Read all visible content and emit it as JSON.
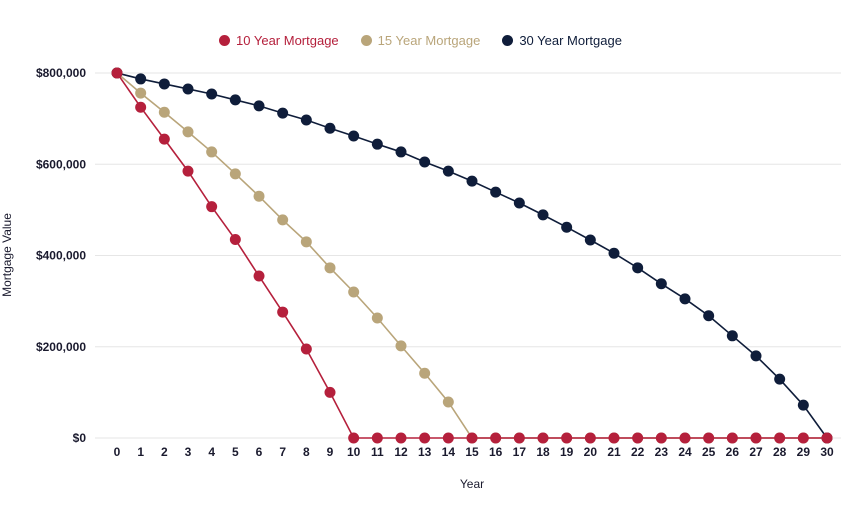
{
  "chart_data": {
    "type": "line",
    "xlabel": "Year",
    "ylabel": "Mortgage Value",
    "x": [
      0,
      1,
      2,
      3,
      4,
      5,
      6,
      7,
      8,
      9,
      10,
      11,
      12,
      13,
      14,
      15,
      16,
      17,
      18,
      19,
      20,
      21,
      22,
      23,
      24,
      25,
      26,
      27,
      28,
      29,
      30
    ],
    "xlim": [
      0,
      30
    ],
    "ylim": [
      0,
      800000
    ],
    "yticks": [
      0,
      200000,
      400000,
      600000,
      800000
    ],
    "ytick_labels": [
      "$0",
      "$200,000",
      "$400,000",
      "$600,000",
      "$800,000"
    ],
    "grid": "horizontal",
    "legend_position": "top",
    "series": [
      {
        "name": "10 Year Mortgage",
        "color": "#b5203c",
        "values": [
          800000,
          725000,
          655000,
          585000,
          507000,
          435000,
          355000,
          276000,
          195000,
          100000,
          0,
          0,
          0,
          0,
          0,
          0,
          0,
          0,
          0,
          0,
          0,
          0,
          0,
          0,
          0,
          0,
          0,
          0,
          0,
          0,
          0
        ]
      },
      {
        "name": "15 Year Mortgage",
        "color": "#b9a57a",
        "values": [
          800000,
          756000,
          714000,
          671000,
          627000,
          579000,
          530000,
          478000,
          430000,
          373000,
          320000,
          263000,
          202000,
          142000,
          79000,
          0,
          0,
          0,
          0,
          0,
          0,
          0,
          0,
          0,
          0,
          0,
          0,
          0,
          0,
          0,
          0
        ]
      },
      {
        "name": "30 Year Mortgage",
        "color": "#0f1d3a",
        "values": [
          800000,
          787000,
          776000,
          765000,
          754000,
          741000,
          728000,
          712000,
          697000,
          679000,
          662000,
          644000,
          627000,
          605000,
          585000,
          563000,
          539000,
          515000,
          489000,
          462000,
          434000,
          405000,
          373000,
          338000,
          305000,
          268000,
          224000,
          180000,
          129000,
          72000,
          0
        ]
      }
    ]
  }
}
